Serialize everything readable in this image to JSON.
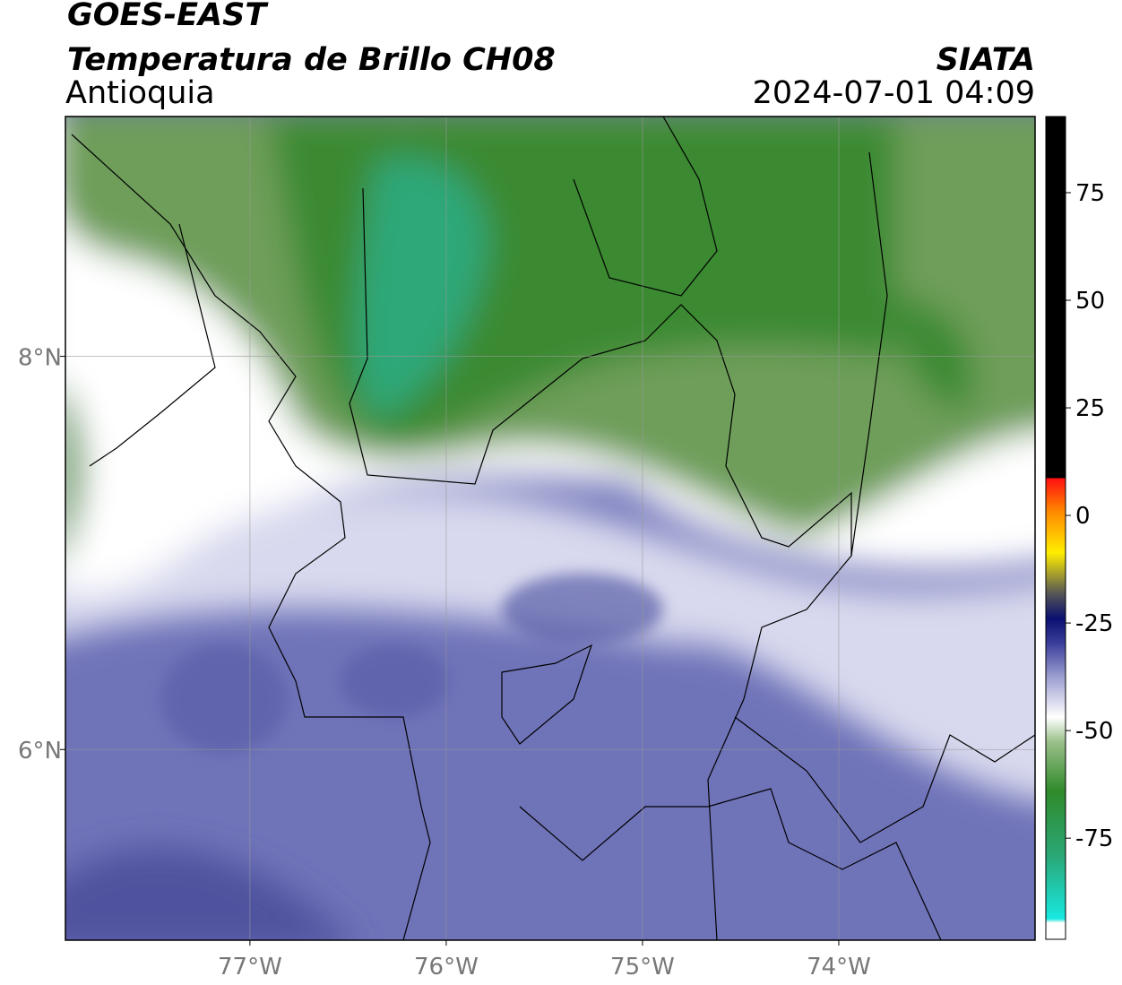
{
  "header": {
    "source": "GOES-EAST",
    "title": "Temperatura de Brillo CH08",
    "region": "Antioquia",
    "org": "SIATA",
    "datetime": "2024-07-01 04:09"
  },
  "map": {
    "xlim": [
      -77.94,
      -73.0
    ],
    "ylim": [
      5.03,
      9.22
    ],
    "xticks": [
      {
        "value": -77,
        "label": "77°W"
      },
      {
        "value": -76,
        "label": "76°W"
      },
      {
        "value": -75,
        "label": "75°W"
      },
      {
        "value": -74,
        "label": "74°W"
      }
    ],
    "yticks": [
      {
        "value": 8,
        "label": "8°N"
      },
      {
        "value": 6,
        "label": "6°N"
      }
    ],
    "grid": true
  },
  "colorbar": {
    "lim": [
      -98.5,
      92.7
    ],
    "ticks": [
      75,
      50,
      25,
      0,
      -25,
      -50,
      -75
    ]
  }
}
